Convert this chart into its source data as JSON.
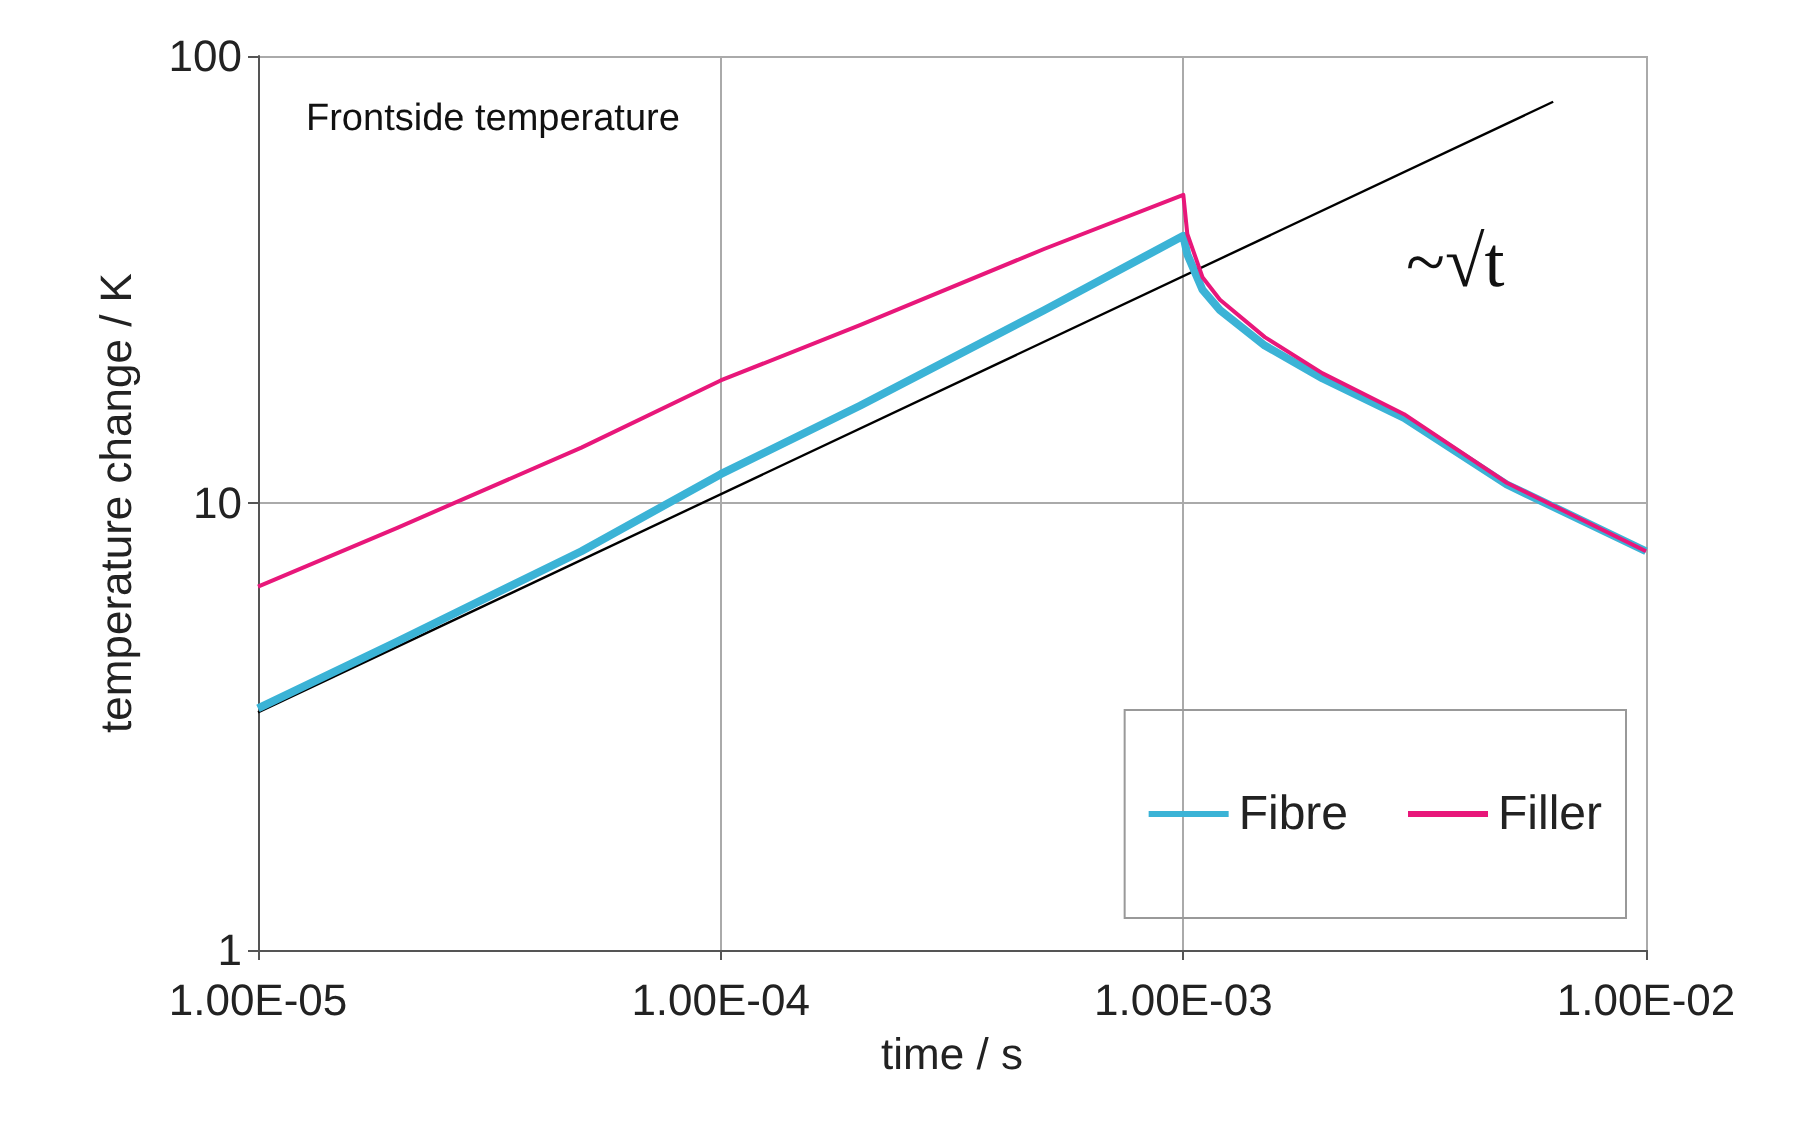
{
  "chart_data": {
    "type": "line",
    "xlabel": "time / s",
    "ylabel": "temperature change / K",
    "log": "xy",
    "xlim": [
      1e-05,
      0.01
    ],
    "ylim": [
      1,
      100
    ],
    "xticks": [
      {
        "value": 1e-05,
        "label": "1.00E-05"
      },
      {
        "value": 0.0001,
        "label": "1.00E-04"
      },
      {
        "value": 0.001,
        "label": "1.00E-03"
      },
      {
        "value": 0.01,
        "label": "1.00E-02"
      }
    ],
    "yticks": [
      1,
      10,
      100
    ],
    "grid": true,
    "legend": "bottom right",
    "marker": "none",
    "line_style": "solid",
    "annotations": [
      "Frontside temperature",
      "~√t"
    ],
    "series": [
      {
        "name": "Fibre",
        "color": "#3bb3d6",
        "x": [
          1e-05,
          2e-05,
          5e-05,
          0.0001,
          0.0002,
          0.0005,
          0.001,
          0.00102,
          0.0011,
          0.0012,
          0.0015,
          0.002,
          0.003,
          0.005,
          0.01
        ],
        "values": [
          3.47,
          4.9,
          7.8,
          11.6,
          16.5,
          27,
          39.6,
          36,
          30,
          27,
          22.5,
          19,
          15.5,
          11,
          7.8
        ]
      },
      {
        "name": "Filler",
        "color": "#e8177a",
        "x": [
          1e-05,
          2e-05,
          5e-05,
          0.0001,
          0.0002,
          0.0005,
          0.001,
          0.00102,
          0.0011,
          0.0012,
          0.0015,
          0.002,
          0.003,
          0.005,
          0.01
        ],
        "values": [
          6.5,
          8.8,
          13.3,
          18.8,
          25,
          37,
          48.9,
          40,
          32,
          28.5,
          23.5,
          19.5,
          15.8,
          11.1,
          7.8
        ]
      },
      {
        "type": "line",
        "color": "#000000",
        "x": [
          1e-05,
          0.0063
        ],
        "values": [
          3.4,
          79
        ]
      }
    ]
  }
}
